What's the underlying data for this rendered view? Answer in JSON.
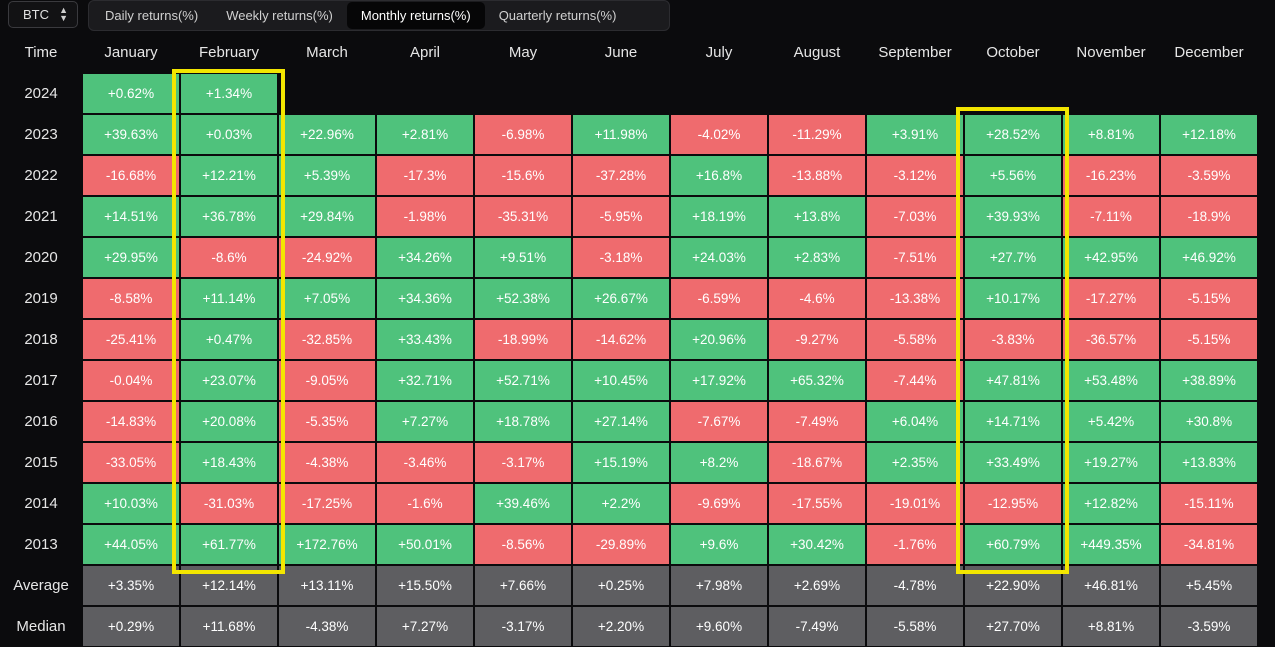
{
  "toolbar": {
    "asset": "BTC",
    "tabs": [
      {
        "label": "Daily returns(%)",
        "active": false
      },
      {
        "label": "Weekly returns(%)",
        "active": false
      },
      {
        "label": "Monthly returns(%)",
        "active": true
      },
      {
        "label": "Quarterly returns(%)",
        "active": false
      }
    ]
  },
  "table": {
    "time_header": "Time",
    "months": [
      "January",
      "February",
      "March",
      "April",
      "May",
      "June",
      "July",
      "August",
      "September",
      "October",
      "November",
      "December"
    ],
    "rows": [
      {
        "label": "2024",
        "values": [
          "+0.62%",
          "+1.34%",
          "",
          "",
          "",
          "",
          "",
          "",
          "",
          "",
          "",
          ""
        ]
      },
      {
        "label": "2023",
        "values": [
          "+39.63%",
          "+0.03%",
          "+22.96%",
          "+2.81%",
          "-6.98%",
          "+11.98%",
          "-4.02%",
          "-11.29%",
          "+3.91%",
          "+28.52%",
          "+8.81%",
          "+12.18%"
        ]
      },
      {
        "label": "2022",
        "values": [
          "-16.68%",
          "+12.21%",
          "+5.39%",
          "-17.3%",
          "-15.6%",
          "-37.28%",
          "+16.8%",
          "-13.88%",
          "-3.12%",
          "+5.56%",
          "-16.23%",
          "-3.59%"
        ]
      },
      {
        "label": "2021",
        "values": [
          "+14.51%",
          "+36.78%",
          "+29.84%",
          "-1.98%",
          "-35.31%",
          "-5.95%",
          "+18.19%",
          "+13.8%",
          "-7.03%",
          "+39.93%",
          "-7.11%",
          "-18.9%"
        ]
      },
      {
        "label": "2020",
        "values": [
          "+29.95%",
          "-8.6%",
          "-24.92%",
          "+34.26%",
          "+9.51%",
          "-3.18%",
          "+24.03%",
          "+2.83%",
          "-7.51%",
          "+27.7%",
          "+42.95%",
          "+46.92%"
        ]
      },
      {
        "label": "2019",
        "values": [
          "-8.58%",
          "+11.14%",
          "+7.05%",
          "+34.36%",
          "+52.38%",
          "+26.67%",
          "-6.59%",
          "-4.6%",
          "-13.38%",
          "+10.17%",
          "-17.27%",
          "-5.15%"
        ]
      },
      {
        "label": "2018",
        "values": [
          "-25.41%",
          "+0.47%",
          "-32.85%",
          "+33.43%",
          "-18.99%",
          "-14.62%",
          "+20.96%",
          "-9.27%",
          "-5.58%",
          "-3.83%",
          "-36.57%",
          "-5.15%"
        ]
      },
      {
        "label": "2017",
        "values": [
          "-0.04%",
          "+23.07%",
          "-9.05%",
          "+32.71%",
          "+52.71%",
          "+10.45%",
          "+17.92%",
          "+65.32%",
          "-7.44%",
          "+47.81%",
          "+53.48%",
          "+38.89%"
        ]
      },
      {
        "label": "2016",
        "values": [
          "-14.83%",
          "+20.08%",
          "-5.35%",
          "+7.27%",
          "+18.78%",
          "+27.14%",
          "-7.67%",
          "-7.49%",
          "+6.04%",
          "+14.71%",
          "+5.42%",
          "+30.8%"
        ]
      },
      {
        "label": "2015",
        "values": [
          "-33.05%",
          "+18.43%",
          "-4.38%",
          "-3.46%",
          "-3.17%",
          "+15.19%",
          "+8.2%",
          "-18.67%",
          "+2.35%",
          "+33.49%",
          "+19.27%",
          "+13.83%"
        ]
      },
      {
        "label": "2014",
        "values": [
          "+10.03%",
          "-31.03%",
          "-17.25%",
          "-1.6%",
          "+39.46%",
          "+2.2%",
          "-9.69%",
          "-17.55%",
          "-19.01%",
          "-12.95%",
          "+12.82%",
          "-15.11%"
        ]
      },
      {
        "label": "2013",
        "values": [
          "+44.05%",
          "+61.77%",
          "+172.76%",
          "+50.01%",
          "-8.56%",
          "-29.89%",
          "+9.6%",
          "+30.42%",
          "-1.76%",
          "+60.79%",
          "+449.35%",
          "-34.81%"
        ]
      }
    ],
    "stats": [
      {
        "label": "Average",
        "values": [
          "+3.35%",
          "+12.14%",
          "+13.11%",
          "+15.50%",
          "+7.66%",
          "+0.25%",
          "+7.98%",
          "+2.69%",
          "-4.78%",
          "+22.90%",
          "+46.81%",
          "+5.45%"
        ]
      },
      {
        "label": "Median",
        "values": [
          "+0.29%",
          "+11.68%",
          "-4.38%",
          "+7.27%",
          "-3.17%",
          "+2.20%",
          "+9.60%",
          "-7.49%",
          "-5.58%",
          "+27.70%",
          "+8.81%",
          "-3.59%"
        ]
      }
    ]
  },
  "colors": {
    "positive": "#4fc27c",
    "negative": "#ef6b6e",
    "stat": "#5e5e61",
    "highlight": "#f3e600"
  },
  "highlights": [
    "February",
    "October"
  ]
}
